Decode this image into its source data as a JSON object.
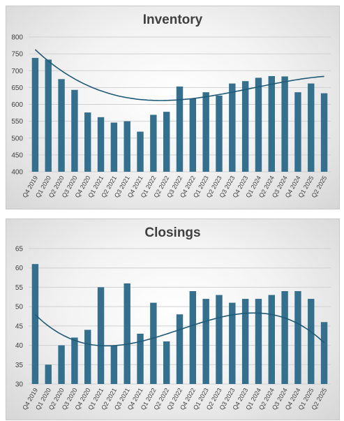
{
  "chart_data": [
    {
      "type": "bar",
      "title": "Inventory",
      "xlabel": "",
      "ylabel": "",
      "categories": [
        "Q4 2019",
        "Q1 2020",
        "Q2 2020",
        "Q3 2020",
        "Q4 2020",
        "Q1 2021",
        "Q2 2021",
        "Q3 2021",
        "Q4 2021",
        "Q1 2022",
        "Q2 2022",
        "Q3 2022",
        "Q4 2022",
        "Q1 2023",
        "Q2 2023",
        "Q3 2023",
        "Q4 2023",
        "Q1 2024",
        "Q2 2024",
        "Q3 2024",
        "Q4 2024",
        "Q1 2025",
        "Q2 2025"
      ],
      "values": [
        738,
        733,
        675,
        643,
        576,
        562,
        546,
        550,
        519,
        569,
        578,
        653,
        617,
        636,
        626,
        662,
        669,
        679,
        684,
        683,
        636,
        662,
        633
      ],
      "ylim": [
        400,
        800
      ],
      "yticks": [
        400,
        450,
        500,
        550,
        600,
        650,
        700,
        750,
        800
      ],
      "grid": true,
      "trendline": {
        "type": "polynomial",
        "order": 3,
        "coefficients": [
          802.09,
          -42.11,
          2.849,
          -0.05404
        ]
      },
      "bar_color": "#34708d",
      "trend_color": "#1f5a78"
    },
    {
      "type": "bar",
      "title": "Closings",
      "xlabel": "",
      "ylabel": "",
      "categories": [
        "Q4 2019",
        "Q1 2020",
        "Q2 2020",
        "Q3 2020",
        "Q4 2020",
        "Q1 2021",
        "Q2 2021",
        "Q3 2021",
        "Q4 2021",
        "Q1 2022",
        "Q2 2022",
        "Q3 2022",
        "Q4 2022",
        "Q1 2023",
        "Q2 2023",
        "Q3 2023",
        "Q4 2023",
        "Q1 2024",
        "Q2 2024",
        "Q3 2024",
        "Q4 2024",
        "Q1 2025",
        "Q2 2025"
      ],
      "values": [
        61,
        35,
        40,
        42,
        44,
        55,
        40,
        56,
        43,
        51,
        41,
        48,
        54,
        52,
        53,
        51,
        52,
        52,
        53,
        54,
        54,
        52,
        46
      ],
      "ylim": [
        30,
        65
      ],
      "yticks": [
        30,
        35,
        40,
        45,
        50,
        55,
        60,
        65
      ],
      "grid": true,
      "trendline": {
        "type": "polynomial",
        "order": 3,
        "coefficients": [
          51.67,
          -4.16,
          0.4395,
          -0.01215
        ]
      },
      "bar_color": "#34708d",
      "trend_color": "#1f5a78"
    }
  ]
}
